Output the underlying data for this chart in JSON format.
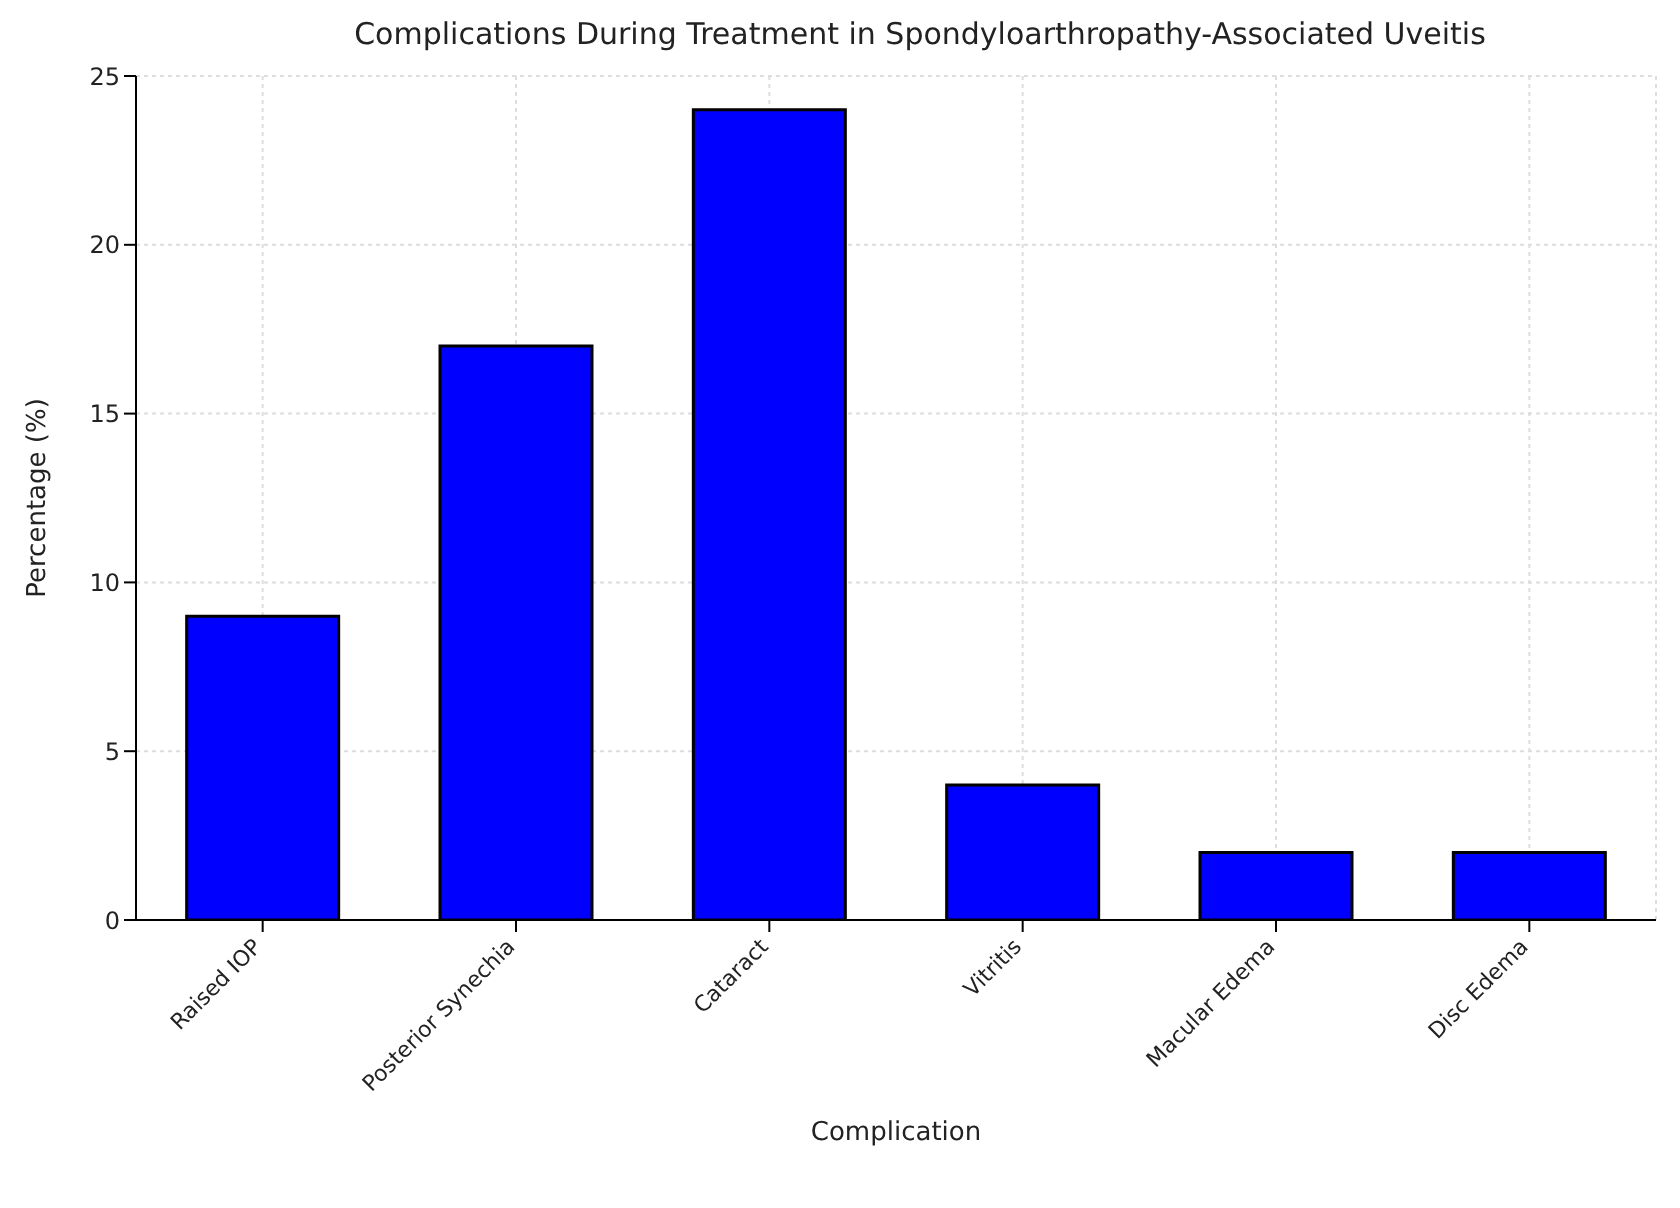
{
  "chart_data": {
    "type": "bar",
    "title": "Complications During Treatment in Spondyloarthropathy-Associated Uveitis",
    "xlabel": "Complication",
    "ylabel": "Percentage (%)",
    "categories": [
      "Raised IOP",
      "Posterior Synechia",
      "Cataract",
      "Vitritis",
      "Macular Edema",
      "Disc Edema"
    ],
    "values": [
      9,
      17,
      24,
      4,
      2,
      2
    ],
    "color": "#0000ff",
    "ylim": [
      0,
      25
    ],
    "yticks": [
      0,
      5,
      10,
      15,
      20,
      25
    ],
    "grid": true
  }
}
